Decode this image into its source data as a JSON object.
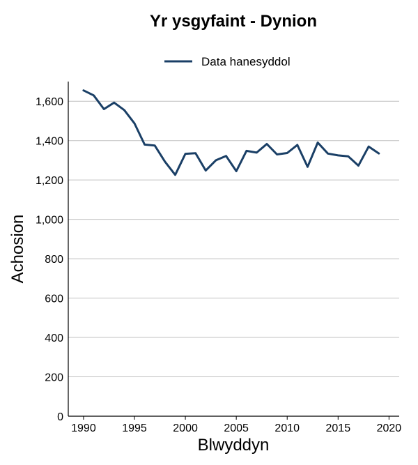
{
  "chart_data": {
    "type": "line",
    "title": "Yr ysgyfaint - Dynion",
    "xlabel": "Blwyddyn",
    "ylabel": "Achosion",
    "xlim": [
      1988.5,
      2021
    ],
    "ylim": [
      0,
      1700
    ],
    "x_ticks": [
      1990,
      1995,
      2000,
      2005,
      2010,
      2015,
      2020
    ],
    "y_ticks": [
      0,
      200,
      400,
      600,
      800,
      1000,
      1200,
      1400,
      1600
    ],
    "y_tick_labels": [
      "0",
      "200",
      "400",
      "600",
      "800",
      "1,000",
      "1,200",
      "1,400",
      "1,600"
    ],
    "grid": "horizontal",
    "legend_position": "top-center",
    "series": [
      {
        "name": "Data hanesyddol",
        "color": "#1a3f66",
        "x": [
          1990,
          1991,
          1992,
          1993,
          1994,
          1995,
          1996,
          1997,
          1998,
          1999,
          2000,
          2001,
          2002,
          2003,
          2004,
          2005,
          2006,
          2007,
          2008,
          2009,
          2010,
          2011,
          2012,
          2013,
          2014,
          2015,
          2016,
          2017,
          2018,
          2019
        ],
        "values": [
          1655,
          1630,
          1560,
          1593,
          1555,
          1488,
          1380,
          1375,
          1293,
          1226,
          1333,
          1336,
          1248,
          1300,
          1322,
          1245,
          1348,
          1339,
          1383,
          1330,
          1337,
          1378,
          1267,
          1390,
          1334,
          1325,
          1320,
          1273,
          1370,
          1335
        ]
      }
    ]
  }
}
